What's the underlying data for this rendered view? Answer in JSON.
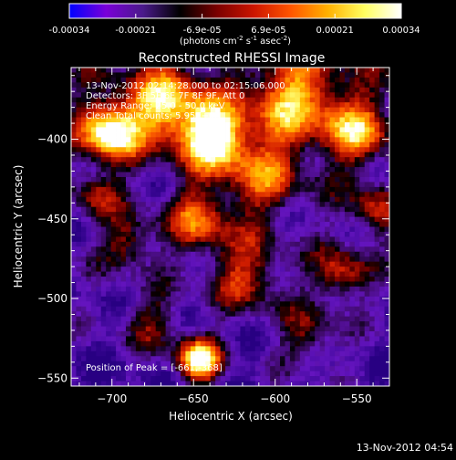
{
  "chart_data": {
    "type": "heatmap",
    "title": "Reconstructed RHESSI Image",
    "xlabel": "Heliocentric X (arcsec)",
    "ylabel": "Heliocentric Y (arcsec)",
    "xlim": [
      -725,
      -530
    ],
    "ylim": [
      -555,
      -355
    ],
    "x_ticks": [
      -700,
      -650,
      -600,
      -550
    ],
    "y_ticks": [
      -550,
      -500,
      -450,
      -400
    ],
    "colorbar": {
      "range": [
        -0.00034,
        0.00034
      ],
      "tick_labels": [
        "-0.00034",
        "-0.00021",
        "-6.9e-05",
        "6.9e-05",
        "0.00021",
        "0.00034"
      ],
      "units_prefix": "(photons cm",
      "units_sup1": "-2",
      "units_mid": " s",
      "units_sup2": "-1",
      "units_mid2": " asec",
      "units_sup3": "-2",
      "units_suffix": ")",
      "colors": [
        "#0000ff",
        "#7a00d8",
        "#4a1a8a",
        "#000000",
        "#7a0000",
        "#cc1500",
        "#ff5500",
        "#ffb000",
        "#ffff60",
        "#ffffff"
      ]
    },
    "peak_x": -661,
    "peak_y": -368
  },
  "annotations": {
    "time_range": "13-Nov-2012 02:14:28.000 to 02:15:06.000",
    "detectors": "Detectors: 3F 5F 6F 7F 8F 9F, Att 0",
    "energy": "Energy Range: 25.0 - 50.0 keV",
    "clean": "Clean      Total counts: 5.95E+03",
    "peak_label": "Position of Peak = ",
    "peak_value": "[-661,-368]"
  },
  "footer": {
    "timestamp": "13-Nov-2012 04:54"
  }
}
